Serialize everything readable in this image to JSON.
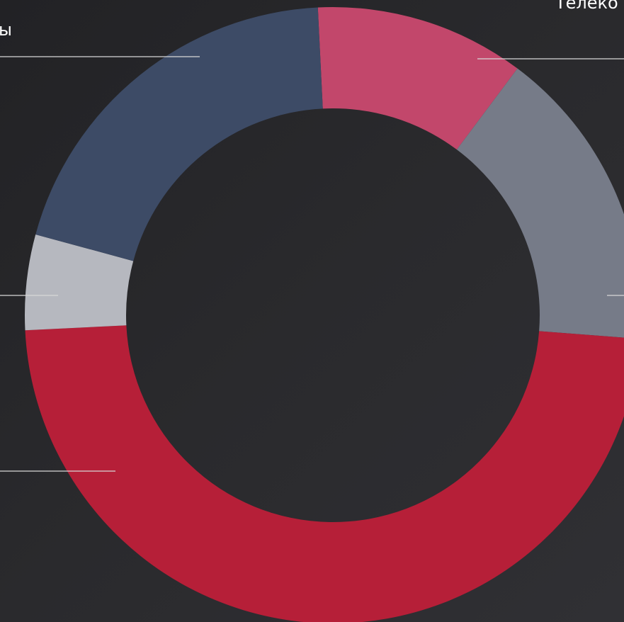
{
  "chart_data": {
    "type": "donut",
    "categories": [
      "Телеко",
      null,
      null,
      null,
      "ы"
    ],
    "values": [
      11,
      16,
      48,
      5,
      20
    ],
    "colors": [
      "#c2476b",
      "#767b88",
      "#b61f38",
      "#b6b8bf",
      "#3d4b66"
    ]
  }
}
